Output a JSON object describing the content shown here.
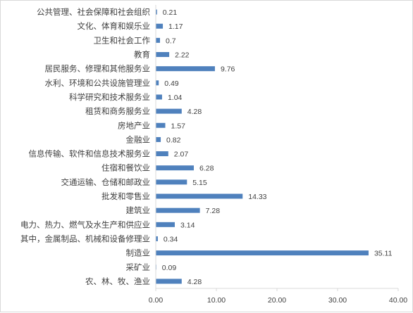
{
  "chart_data": {
    "type": "bar",
    "orientation": "horizontal",
    "categories": [
      "公共管理、社会保障和社会组织",
      "文化、体育和娱乐业",
      "卫生和社会工作",
      "教育",
      "居民服务、修理和其他服务业",
      "水利、环境和公共设施管理业",
      "科学研究和技术服务业",
      "租赁和商务服务业",
      "房地产业",
      "金融业",
      "信息传输、软件和信息技术服务业",
      "住宿和餐饮业",
      "交通运输、仓储和邮政业",
      "批发和零售业",
      "建筑业",
      "电力、热力、燃气及水生产和供应业",
      "其中，金属制品、机械和设备修理业",
      "制造业",
      "采矿业",
      "农、林、牧、渔业"
    ],
    "values": [
      0.21,
      1.17,
      0.7,
      2.22,
      9.76,
      0.49,
      1.04,
      4.28,
      1.57,
      0.82,
      2.07,
      6.28,
      5.15,
      14.33,
      7.28,
      3.14,
      0.34,
      35.11,
      0.09,
      4.28
    ],
    "value_labels": [
      "0.21",
      "1.17",
      "0.7",
      "2.22",
      "9.76",
      "0.49",
      "1.04",
      "4.28",
      "1.57",
      "0.82",
      "2.07",
      "6.28",
      "5.15",
      "14.33",
      "7.28",
      "3.14",
      "0.34",
      "35.11",
      "0.09",
      "4.28"
    ],
    "xlim": [
      0,
      40
    ],
    "x_ticks": [
      0,
      10,
      20,
      30,
      40
    ],
    "x_tick_labels": [
      "0.00",
      "10.00",
      "20.00",
      "30.00",
      "40.00"
    ],
    "title": "",
    "xlabel": "",
    "ylabel": "",
    "grid": false,
    "legend": "none",
    "bar_color": "#4f81bd"
  }
}
